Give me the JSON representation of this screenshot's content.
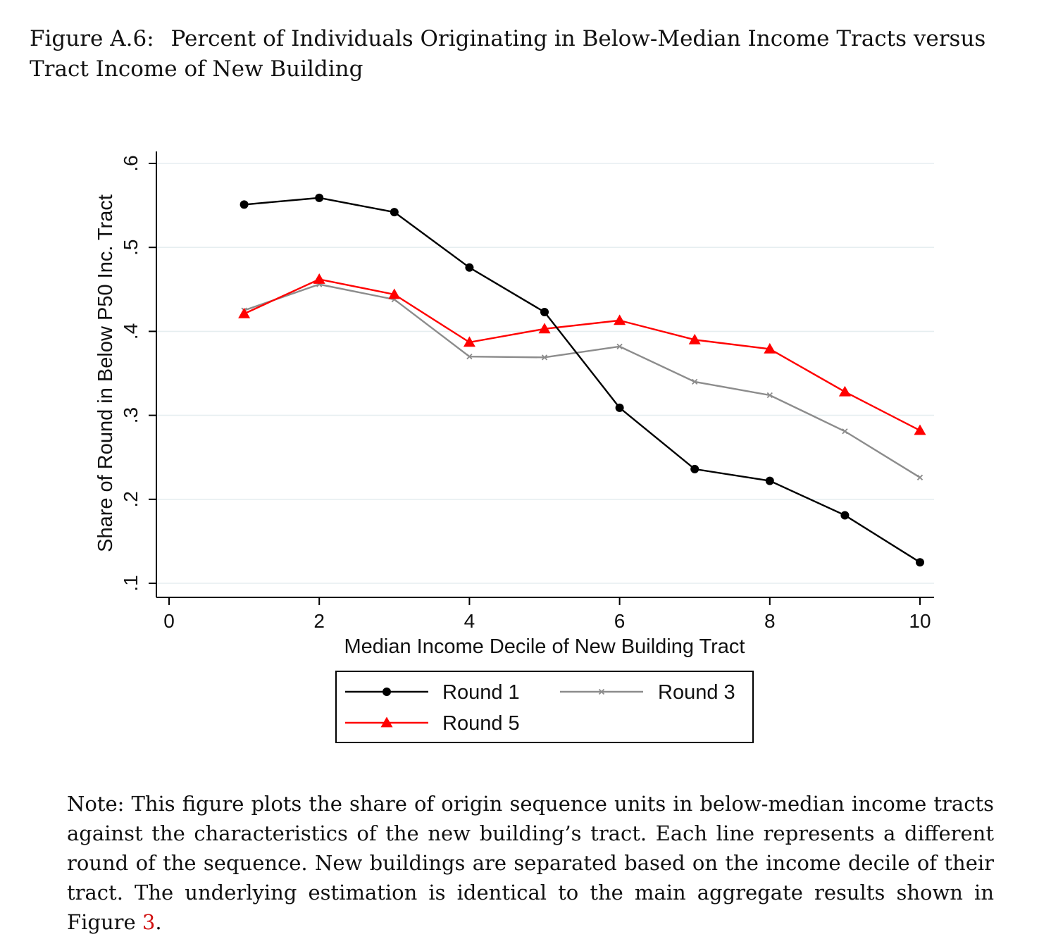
{
  "caption": {
    "label": "Figure A.6:",
    "text": "Percent of Individuals Originating in Below-Median Income Tracts versus Tract Income of New Building"
  },
  "note": {
    "text": "Note: This figure plots the share of origin sequence units in below-median income tracts against the characteristics of the new building’s tract. Each line represents a different round of the sequence. New buildings are separated based on the income decile of their tract. The underlying estimation is identical to the main aggregate results shown in Figure",
    "ref": "3",
    "end": "."
  },
  "chart_data": {
    "type": "line",
    "xlabel": "Median Income Decile of New Building Tract",
    "ylabel": "Share of Round in Below P50 Inc. Tract",
    "xlim": [
      0,
      10
    ],
    "ylim": [
      0.1,
      0.6
    ],
    "xticks": [
      0,
      2,
      4,
      6,
      8,
      10
    ],
    "xtick_labels": [
      "0",
      "2",
      "4",
      "6",
      "8",
      "10"
    ],
    "yticks": [
      0.1,
      0.2,
      0.3,
      0.4,
      0.5,
      0.6
    ],
    "ytick_labels": [
      ".1",
      ".2",
      ".3",
      ".4",
      ".5",
      ".6"
    ],
    "grid": true,
    "legend_position": "bottom",
    "x": [
      1,
      2,
      3,
      4,
      5,
      6,
      7,
      8,
      9,
      10
    ],
    "series": [
      {
        "name": "Round 1",
        "color": "#000000",
        "marker": "circle",
        "values": [
          0.551,
          0.559,
          0.542,
          0.476,
          0.423,
          0.309,
          0.236,
          0.222,
          0.181,
          0.125
        ]
      },
      {
        "name": "Round 3",
        "color": "#8c8c8c",
        "marker": "x",
        "values": [
          0.425,
          0.456,
          0.438,
          0.37,
          0.369,
          0.382,
          0.34,
          0.324,
          0.281,
          0.226
        ]
      },
      {
        "name": "Round 5",
        "color": "#ff0000",
        "marker": "triangle",
        "values": [
          0.421,
          0.462,
          0.444,
          0.387,
          0.403,
          0.413,
          0.39,
          0.379,
          0.328,
          0.282
        ]
      }
    ]
  }
}
